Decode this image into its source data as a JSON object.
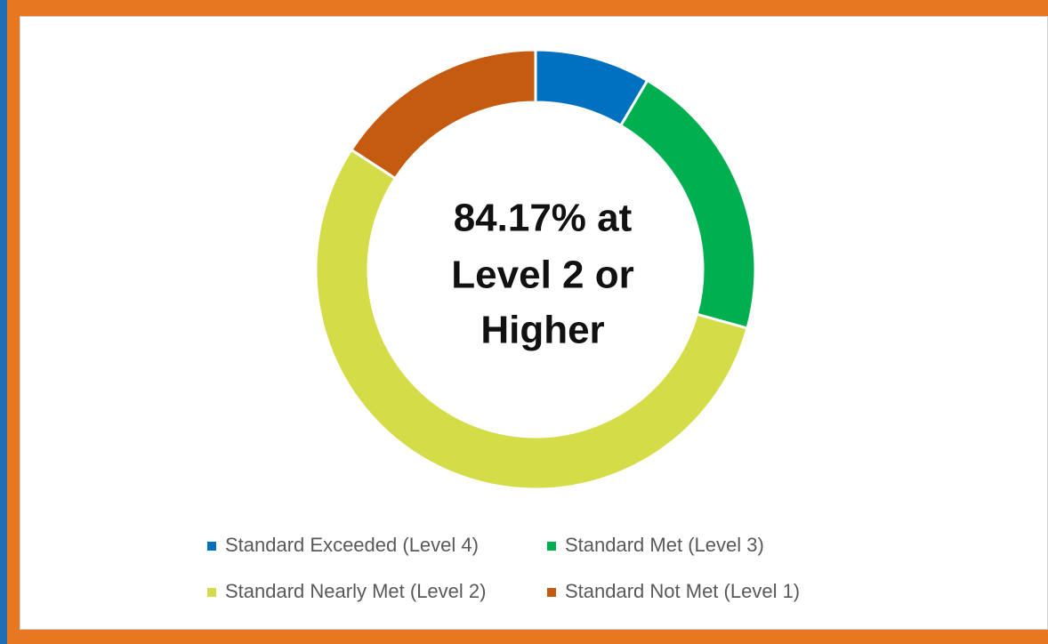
{
  "chart_data": {
    "type": "donut",
    "center_text": [
      "84.17% at",
      "Level 2 or",
      "Higher"
    ],
    "categories": [
      "Standard Exceeded (Level 4)",
      "Standard Met (Level 3)",
      "Standard Nearly Met (Level 2)",
      "Standard Not Met (Level 1)"
    ],
    "values": [
      8.5,
      20.8,
      54.87,
      15.83
    ],
    "colors": [
      "#0070c0",
      "#00b050",
      "#d4dc48",
      "#c55a11"
    ],
    "legend": "bottom"
  }
}
